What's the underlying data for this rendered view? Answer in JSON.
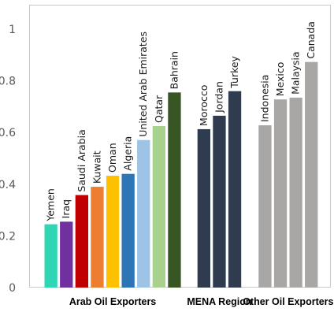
{
  "chart_data": {
    "type": "bar",
    "title": "",
    "xlabel": "",
    "ylabel": "",
    "ylim": [
      0,
      1
    ],
    "yticks": [
      "0",
      "0.2",
      "0.4",
      "0.6",
      "0.8",
      "1"
    ],
    "grid": false,
    "legend": "none",
    "groups": [
      {
        "name": "Arab Oil Exporters",
        "bars": [
          {
            "label": "Yemen",
            "value": 0.245,
            "color": "#2fd6b4"
          },
          {
            "label": "Iraq",
            "value": 0.255,
            "color": "#7030a0"
          },
          {
            "label": "Saudi Arabia",
            "value": 0.358,
            "color": "#c00000"
          },
          {
            "label": "Kuwait",
            "value": 0.39,
            "color": "#ed7d31"
          },
          {
            "label": "Oman",
            "value": 0.433,
            "color": "#ffc000"
          },
          {
            "label": "Algeria",
            "value": 0.44,
            "color": "#2e75b6"
          },
          {
            "label": "United Arab Emirates",
            "value": 0.571,
            "color": "#9dc3e6"
          },
          {
            "label": "Qatar",
            "value": 0.625,
            "color": "#a9d18e"
          },
          {
            "label": "Bahrain",
            "value": 0.755,
            "color": "#375623"
          }
        ]
      },
      {
        "name": "MENA Region",
        "bars": [
          {
            "label": "Morocco",
            "value": 0.613,
            "color": "#2f3c50"
          },
          {
            "label": "Jordan",
            "value": 0.665,
            "color": "#2f3c50"
          },
          {
            "label": "Turkey",
            "value": 0.76,
            "color": "#2f3c50"
          }
        ]
      },
      {
        "name": "Other Oil Exporters",
        "bars": [
          {
            "label": "Indonesia",
            "value": 0.628,
            "color": "#a9a6a6"
          },
          {
            "label": "Mexico",
            "value": 0.728,
            "color": "#a9a6a6"
          },
          {
            "label": "Malaysia",
            "value": 0.735,
            "color": "#a9a6a6"
          },
          {
            "label": "Canada",
            "value": 0.873,
            "color": "#a9a6a6"
          }
        ]
      }
    ]
  }
}
